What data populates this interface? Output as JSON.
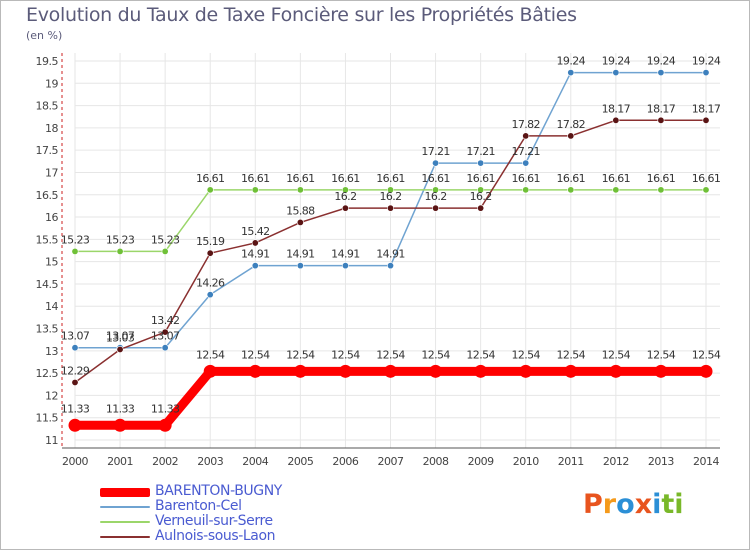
{
  "title": "Evolution du Taux de Taxe Foncière sur les Propriétés Bâties",
  "subtitle": "(en %)",
  "brand": {
    "letters": [
      "P",
      "r",
      "o",
      "x",
      "i",
      "t",
      "i"
    ],
    "colors": [
      "#e8541e",
      "#f59a1b",
      "#2b8fd6",
      "#e8541e",
      "#2b8fd6",
      "#79b829",
      "#79b829"
    ]
  },
  "chart_data": {
    "type": "line",
    "title": "Evolution du Taux de Taxe Foncière sur les Propriétés Bâties",
    "ylabel": "(en %)",
    "xlabel": "",
    "x": [
      "2000",
      "2001",
      "2002",
      "2003",
      "2004",
      "2005",
      "2006",
      "2007",
      "2008",
      "2009",
      "2010",
      "2011",
      "2012",
      "2013",
      "2014"
    ],
    "ylim": [
      11,
      19.5
    ],
    "yticks": [
      "11",
      "11.5",
      "12",
      "12.5",
      "13",
      "13.5",
      "14",
      "14.5",
      "15",
      "15.5",
      "16",
      "16.5",
      "17",
      "17.5",
      "18",
      "18.5",
      "19",
      "19.5"
    ],
    "series": [
      {
        "name": "BARENTON-BUGNY",
        "color": "#ff0000",
        "bold": true,
        "values": [
          11.33,
          11.33,
          11.33,
          12.54,
          12.54,
          12.54,
          12.54,
          12.54,
          12.54,
          12.54,
          12.54,
          12.54,
          12.54,
          12.54,
          12.54
        ],
        "labels": [
          "11.33",
          "11.33",
          "11.33",
          "12.54",
          "12.54",
          "12.54",
          "12.54",
          "12.54",
          "12.54",
          "12.54",
          "12.54",
          "12.54",
          "12.54",
          "12.54",
          "12.54"
        ]
      },
      {
        "name": "Barenton-Cel",
        "color": "#6fa3d1",
        "marker": "#3d80bd",
        "values": [
          13.07,
          13.07,
          13.07,
          14.26,
          14.91,
          14.91,
          14.91,
          14.91,
          17.21,
          17.21,
          17.21,
          19.24,
          19.24,
          19.24,
          19.24
        ],
        "labels": [
          "13.07",
          "13.07",
          "13.07",
          "14.26",
          "14.91",
          "14.91",
          "14.91",
          "14.91",
          "17.21",
          "17.21",
          "17.21",
          "19.24",
          "19.24",
          "19.24",
          "19.24"
        ]
      },
      {
        "name": "Verneuil-sur-Serre",
        "color": "#9bd66a",
        "marker": "#6fc037",
        "values": [
          15.23,
          15.23,
          15.23,
          16.61,
          16.61,
          16.61,
          16.61,
          16.61,
          16.61,
          16.61,
          16.61,
          16.61,
          16.61,
          16.61,
          16.61
        ],
        "labels": [
          "15.23",
          "15.23",
          "15.23",
          "16.61",
          "16.61",
          "16.61",
          "16.61",
          "16.61",
          "16.61",
          "16.61",
          "16.61",
          "16.61",
          "16.61",
          "16.61",
          "16.61"
        ]
      },
      {
        "name": "Aulnois-sous-Laon",
        "color": "#8a3030",
        "marker": "#5a1414",
        "values": [
          12.29,
          13.03,
          13.42,
          15.19,
          15.42,
          15.88,
          16.2,
          16.2,
          16.2,
          16.2,
          17.82,
          17.82,
          18.17,
          18.17,
          18.17
        ],
        "labels": [
          "12.29",
          "13.03",
          "13.42",
          "15.19",
          "15.42",
          "15.88",
          "16.2",
          "16.2",
          "16.2",
          "16.2",
          "17.82",
          "17.82",
          "18.17",
          "18.17",
          "18.17"
        ]
      }
    ],
    "legend_position": "bottom-left"
  }
}
